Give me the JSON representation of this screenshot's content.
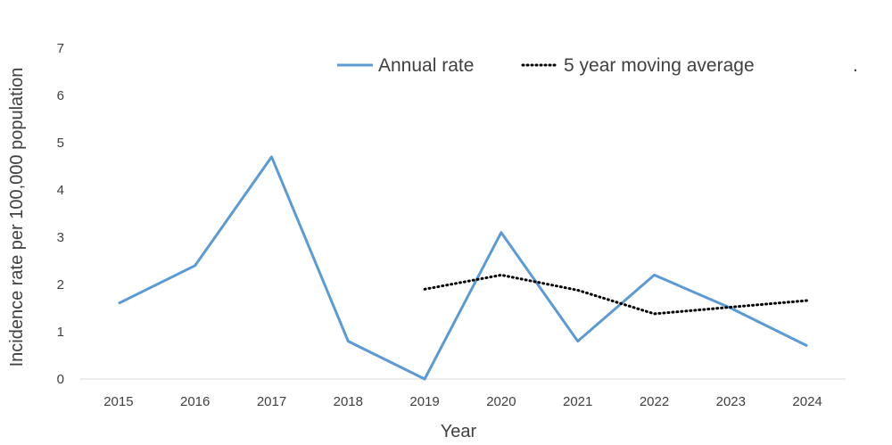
{
  "chart_data": {
    "type": "line",
    "title": "",
    "xlabel": "Year",
    "ylabel": "Incidence rate per 100,000 population",
    "ylim": [
      0,
      7
    ],
    "yticks": [
      "0",
      "1",
      "2",
      "3",
      "4",
      "5",
      "6",
      "7"
    ],
    "categories": [
      "2015",
      "2016",
      "2017",
      "2018",
      "2019",
      "2020",
      "2021",
      "2022",
      "2023",
      "2024"
    ],
    "grid": false,
    "legend_position": "top-right",
    "legend_trailing_text": ".",
    "series": [
      {
        "name": "Annual rate",
        "color": "#5b9bd5",
        "style": "solid",
        "values": [
          1.6,
          2.4,
          4.7,
          0.8,
          0.0,
          3.1,
          0.8,
          2.2,
          1.5,
          0.7
        ]
      },
      {
        "name": "5 year moving average",
        "color": "#000000",
        "style": "dotted",
        "values": [
          null,
          null,
          null,
          null,
          1.9,
          2.2,
          1.88,
          1.38,
          1.52,
          1.66
        ]
      }
    ]
  }
}
